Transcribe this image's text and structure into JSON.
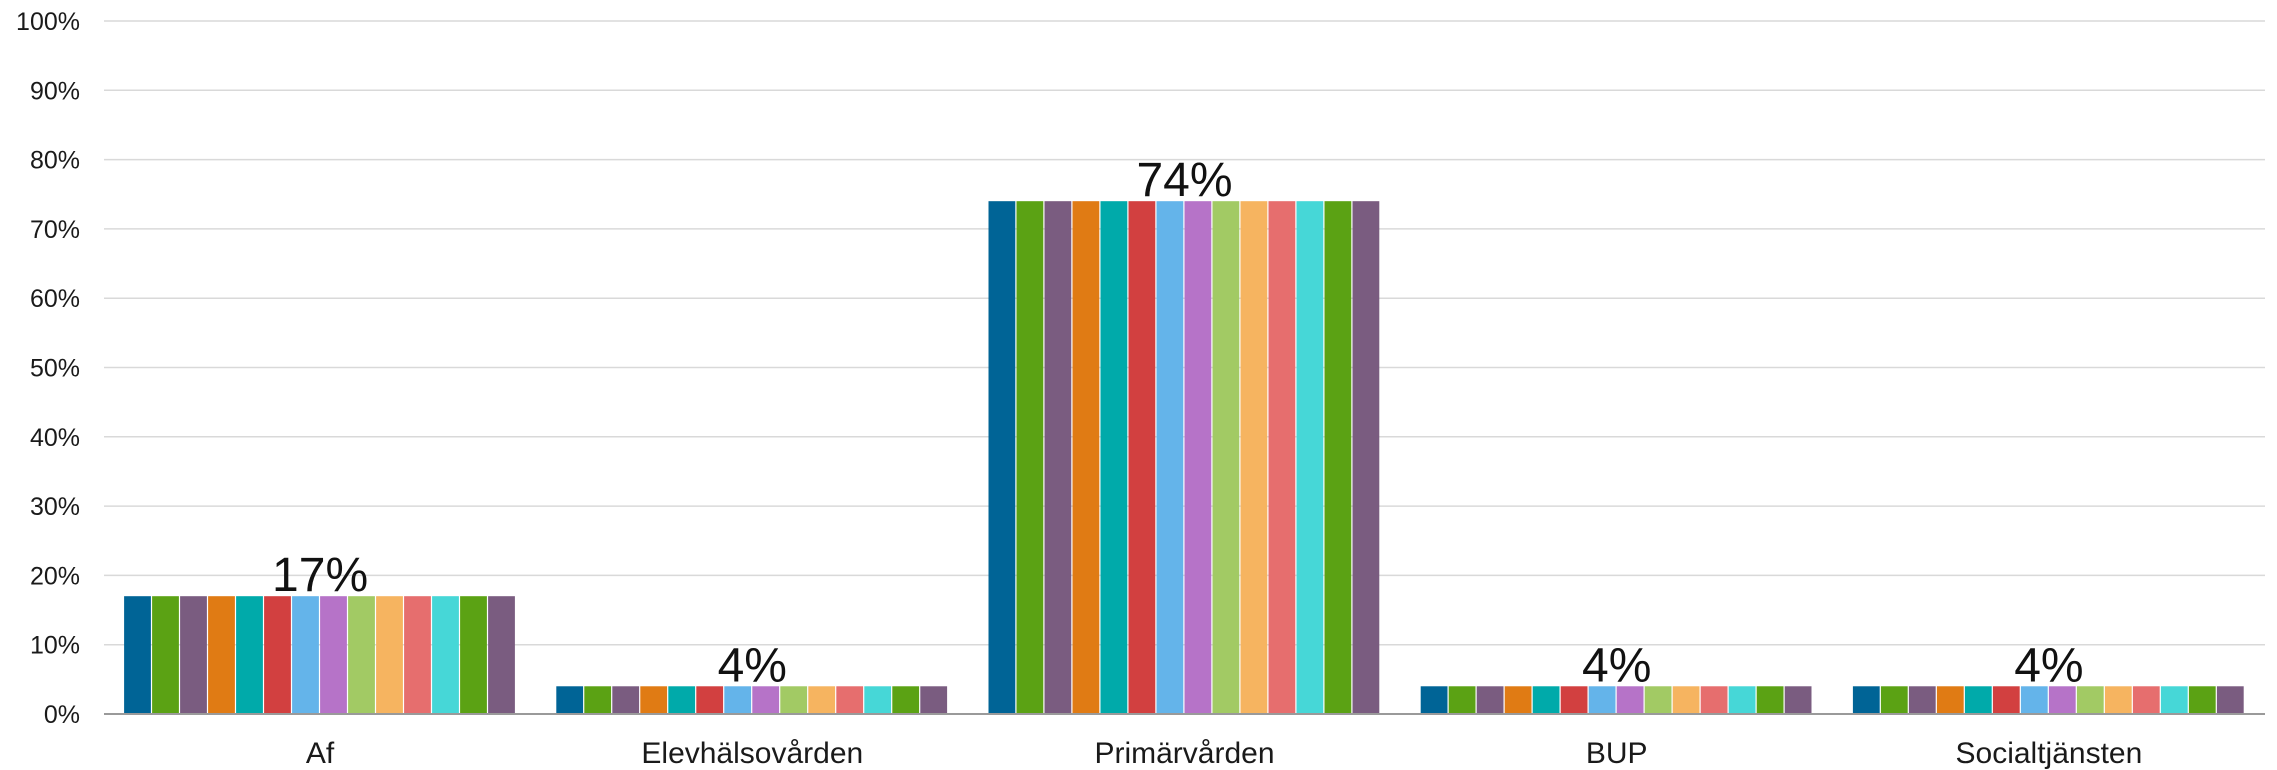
{
  "chart_data": {
    "type": "bar",
    "categories": [
      "Af",
      "Elevhälsovården",
      "Primärvården",
      "BUP",
      "Socialtjänsten"
    ],
    "values": [
      17,
      4,
      74,
      4,
      4
    ],
    "data_labels": [
      "17%",
      "4%",
      "74%",
      "4%",
      "4%"
    ],
    "title": "",
    "xlabel": "",
    "ylabel": "",
    "ylim": [
      0,
      100
    ],
    "yticks": [
      "0%",
      "10%",
      "20%",
      "30%",
      "40%",
      "50%",
      "60%",
      "70%",
      "80%",
      "90%",
      "100%"
    ],
    "grid": true,
    "stripe_colors": [
      "#006496",
      "#5ba214",
      "#7a5c80",
      "#e07b14",
      "#00aaaa",
      "#d24040",
      "#64b4ea",
      "#b673c8",
      "#a2ca64",
      "#f6b460",
      "#e66e6e",
      "#46d7d7",
      "#5ba214",
      "#7a5c80"
    ]
  }
}
